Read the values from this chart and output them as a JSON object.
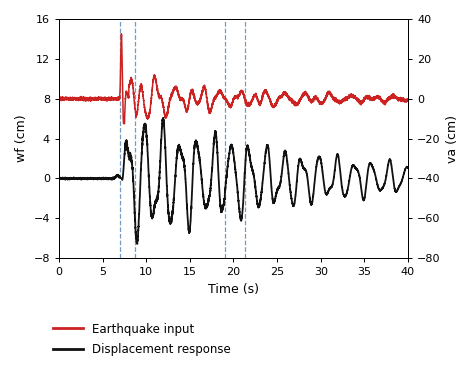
{
  "title": "",
  "xlabel": "Time (s)",
  "ylabel_left": "wf (cm)",
  "ylabel_right": "va (cm)",
  "xlim": [
    0,
    40
  ],
  "ylim_left": [
    -8,
    16
  ],
  "ylim_right": [
    -80,
    40
  ],
  "yticks_left": [
    -8,
    -4,
    0,
    4,
    8,
    12,
    16
  ],
  "yticks_right": [
    -80,
    -60,
    -40,
    -20,
    0,
    20,
    40
  ],
  "xticks": [
    0,
    5,
    10,
    15,
    20,
    25,
    30,
    35,
    40
  ],
  "vlines": [
    7.0,
    8.7,
    19.0,
    21.3
  ],
  "vline_color": "#7799bb",
  "vline_style": "--",
  "red_color": "#cc2222",
  "black_color": "#111111",
  "legend_labels": [
    "Earthquake input",
    "Displacement response"
  ],
  "legend_colors": [
    "#cc2222",
    "#111111"
  ],
  "background_color": "#ffffff",
  "red_baseline": 8.0,
  "linewidth_red": 1.1,
  "linewidth_black": 1.3
}
